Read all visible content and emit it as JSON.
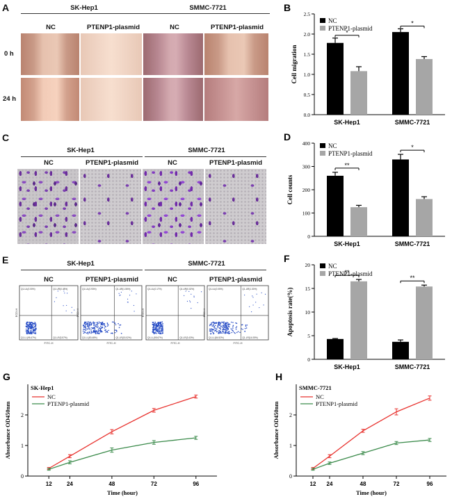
{
  "panels": {
    "A": {
      "label": "A",
      "groups": [
        "SK-Hep1",
        "SMMC-7721"
      ],
      "conditions": [
        "NC",
        "PTENP1-plasmid",
        "NC",
        "PTENP1-plasmid"
      ],
      "rows": [
        "0 h",
        "24 h"
      ]
    },
    "C": {
      "label": "C",
      "groups": [
        "SK-Hep1",
        "SMMC-7721"
      ],
      "conditions": [
        "NC",
        "PTENP1-plasmid",
        "NC",
        "PTENP1-plasmid"
      ]
    },
    "E": {
      "label": "E",
      "groups": [
        "SK-Hep1",
        "SMMC-7721"
      ],
      "conditions": [
        "NC",
        "PTENP1-plasmid",
        "NC",
        "PTENP1-plasmid"
      ],
      "flow_quadrants": [
        [
          "Q1-UL(0.00%)",
          "Q1-UR(0.48%)",
          "Q1-LL(95.47%)",
          "Q1-LR(3.57%)"
        ],
        [
          "Q1-UL(0.93%)",
          "Q1-UR(1.06%)",
          "Q1-LL(83.48%)",
          "Q1-LR(15.02%)"
        ],
        [
          "Q1-UL(0.17%)",
          "Q1-UR(0.02%)",
          "Q1-LL(95.67%)",
          "Q1-LR(3.43%)"
        ],
        [
          "Q1-UL(0.00%)",
          "Q1-UR(1.30%)",
          "Q1-LL(84.52%)",
          "Q1-LR(14.05%)"
        ]
      ],
      "flow_axes": {
        "x": "FITC-H",
        "y": "ECD-H"
      }
    },
    "B": {
      "label": "B"
    },
    "D": {
      "label": "D"
    },
    "F": {
      "label": "F"
    },
    "G": {
      "label": "G"
    },
    "H": {
      "label": "H"
    }
  },
  "chart_data": [
    {
      "id": "B",
      "type": "bar",
      "categories": [
        "SK-Hep1",
        "SMMC-7721"
      ],
      "series": [
        {
          "name": "NC",
          "values": [
            1.78,
            2.05
          ],
          "errors": [
            0.12,
            0.08
          ],
          "color": "#000000"
        },
        {
          "name": "PTENP1-plasmid",
          "values": [
            1.08,
            1.38
          ],
          "errors": [
            0.11,
            0.06
          ],
          "color": "#a6a6a6"
        }
      ],
      "ylabel": "Cell migration",
      "ylim": [
        0,
        2.5
      ],
      "yticks": [
        0.0,
        0.5,
        1.0,
        1.5,
        2.0,
        2.5
      ],
      "ytick_labels": [
        "0.0",
        "0.5",
        "1.0",
        "1.5",
        "2.0",
        "2.5"
      ],
      "significance": [
        "*",
        "*"
      ],
      "legend": "top-left"
    },
    {
      "id": "D",
      "type": "bar",
      "categories": [
        "SK-Hep1",
        "SMMC-7721"
      ],
      "series": [
        {
          "name": "NC",
          "values": [
            260,
            330
          ],
          "errors": [
            15,
            22
          ],
          "color": "#000000"
        },
        {
          "name": "PTENP1-plasmid",
          "values": [
            125,
            160
          ],
          "errors": [
            8,
            10
          ],
          "color": "#a6a6a6"
        }
      ],
      "ylabel": "Cell counts",
      "ylim": [
        0,
        400
      ],
      "yticks": [
        0,
        100,
        200,
        300,
        400
      ],
      "ytick_labels": [
        "0",
        "100",
        "200",
        "300",
        "400"
      ],
      "significance": [
        "**",
        "*"
      ],
      "legend": "top-left"
    },
    {
      "id": "F",
      "type": "bar",
      "categories": [
        "SK-Hep1",
        "SMMC-7721"
      ],
      "series": [
        {
          "name": "NC",
          "values": [
            4.3,
            3.7
          ],
          "errors": [
            0.1,
            0.4
          ],
          "color": "#000000"
        },
        {
          "name": "PTENP1-plasmid",
          "values": [
            16.5,
            15.4
          ],
          "errors": [
            0.4,
            0.3
          ],
          "color": "#a6a6a6"
        }
      ],
      "ylabel": "Apoptosis rate(%)",
      "ylim": [
        0,
        20
      ],
      "yticks": [
        0,
        5,
        10,
        15,
        20
      ],
      "ytick_labels": [
        "0",
        "5",
        "10",
        "15",
        "20"
      ],
      "significance": [
        "**",
        "**"
      ],
      "legend": "top-left"
    },
    {
      "id": "G",
      "type": "line",
      "title": "SK-Hep1",
      "x": [
        12,
        24,
        48,
        72,
        96
      ],
      "series": [
        {
          "name": "NC",
          "values": [
            0.25,
            0.65,
            1.45,
            2.15,
            2.6
          ],
          "errors": [
            0.03,
            0.05,
            0.07,
            0.06,
            0.05
          ],
          "color": "#e8312d"
        },
        {
          "name": "PTENP1-plasmid",
          "values": [
            0.22,
            0.45,
            0.85,
            1.1,
            1.25
          ],
          "errors": [
            0.03,
            0.05,
            0.07,
            0.06,
            0.05
          ],
          "color": "#3a8a4a"
        }
      ],
      "xlabel": "Time (hour)",
      "ylabel": "Absorbance OD450nm",
      "ylim": [
        0,
        3
      ],
      "yticks": [
        0,
        1,
        2
      ],
      "ytick_labels": [
        "0",
        "1",
        "2"
      ],
      "xticks": [
        "12",
        "24",
        "48",
        "72",
        "96"
      ],
      "legend": "top-left"
    },
    {
      "id": "H",
      "type": "line",
      "title": "SMMC-7721",
      "x": [
        12,
        24,
        48,
        72,
        96
      ],
      "series": [
        {
          "name": "NC",
          "values": [
            0.25,
            0.65,
            1.48,
            2.1,
            2.55
          ],
          "errors": [
            0.03,
            0.05,
            0.05,
            0.1,
            0.07
          ],
          "color": "#e8312d"
        },
        {
          "name": "PTENP1-plasmid",
          "values": [
            0.22,
            0.42,
            0.75,
            1.08,
            1.18
          ],
          "errors": [
            0.03,
            0.04,
            0.05,
            0.05,
            0.05
          ],
          "color": "#3a8a4a"
        }
      ],
      "xlabel": "Time (hour)",
      "ylabel": "Absorbance OD450nm",
      "ylim": [
        0,
        3
      ],
      "yticks": [
        0,
        1,
        2
      ],
      "ytick_labels": [
        "0",
        "1",
        "2"
      ],
      "xticks": [
        "12",
        "24",
        "48",
        "72",
        "96"
      ],
      "legend": "top-left"
    }
  ]
}
